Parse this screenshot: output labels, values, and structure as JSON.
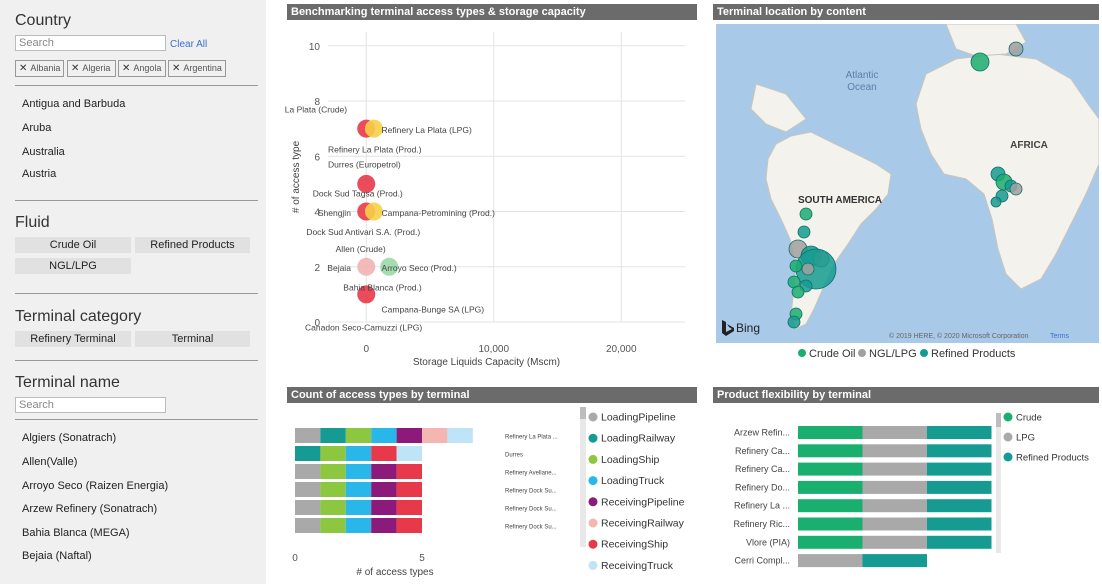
{
  "sidebar": {
    "country": {
      "title": "Country",
      "search_placeholder": "Search",
      "clear_all": "Clear All",
      "chips": [
        "Albania",
        "Algeria",
        "Angola",
        "Argentina"
      ],
      "items": [
        "Antigua and Barbuda",
        "Aruba",
        "Australia",
        "Austria"
      ]
    },
    "fluid": {
      "title": "Fluid",
      "buttons": [
        "Crude Oil",
        "Refined Products",
        "NGL/LPG"
      ]
    },
    "terminal_category": {
      "title": "Terminal category",
      "buttons": [
        "Refinery Terminal",
        "Terminal"
      ]
    },
    "terminal_name": {
      "title": "Terminal name",
      "search_placeholder": "Search",
      "items": [
        "Algiers (Sonatrach)",
        "Allen(Valle)",
        "Arroyo Seco (Raizen Energia)",
        "Arzew Refinery (Sonatrach)",
        "Bahia Blanca (MEGA)",
        "Bejaia (Naftal)"
      ]
    }
  },
  "scatter": {
    "title": "Benchmarking terminal access types & storage capacity",
    "xlabel": "Storage Liquids Capacity (Mscm)",
    "ylabel": "# of access type",
    "xticks": [
      "0",
      "10,000",
      "20,000"
    ],
    "yticks": [
      "0",
      "2",
      "4",
      "6",
      "8",
      "10"
    ],
    "xlim": [
      -3000,
      25000
    ],
    "ylim": [
      0,
      10.5
    ],
    "colors": {
      "red": "#e8394a",
      "yellow": "#f7d046",
      "green": "#9bd9a7",
      "pink": "#f2b3b3"
    },
    "points": [
      {
        "x": 0,
        "y": 7,
        "color": "red"
      },
      {
        "x": 600,
        "y": 7,
        "color": "yellow"
      },
      {
        "x": 0,
        "y": 5,
        "color": "red"
      },
      {
        "x": 0,
        "y": 4,
        "color": "red"
      },
      {
        "x": 600,
        "y": 4,
        "color": "yellow"
      },
      {
        "x": 0,
        "y": 2,
        "color": "pink"
      },
      {
        "x": 1800,
        "y": 2,
        "color": "green"
      },
      {
        "x": 0,
        "y": 1,
        "color": "red"
      }
    ],
    "labels": [
      {
        "text": "Refinery La Plata (Crude)",
        "x": -1500,
        "y": 7.7,
        "anchor": "end"
      },
      {
        "text": "Refinery La Plata (LPG)",
        "x": 1200,
        "y": 6.95,
        "anchor": "start"
      },
      {
        "text": "Refinery La Plata (Prod.)",
        "x": -3000,
        "y": 6.25,
        "anchor": "start"
      },
      {
        "text": "Durres (Europetrol)",
        "x": -3000,
        "y": 5.7,
        "anchor": "start"
      },
      {
        "text": "Dock Sud Tagsa (Prod.)",
        "x": -4200,
        "y": 4.65,
        "anchor": "start"
      },
      {
        "text": "Shengjin",
        "x": -1200,
        "y": 3.95,
        "anchor": "end"
      },
      {
        "text": "Campana-Petromining (Prod.)",
        "x": 1200,
        "y": 3.95,
        "anchor": "start"
      },
      {
        "text": "Dock Sud Antivari S.A. (Prod.)",
        "x": -4700,
        "y": 3.25,
        "anchor": "start"
      },
      {
        "text": "Allen (Crude)",
        "x": -2400,
        "y": 2.65,
        "anchor": "start"
      },
      {
        "text": "Bejaia",
        "x": -1200,
        "y": 1.95,
        "anchor": "end"
      },
      {
        "text": "Arroyo Seco (Prod.)",
        "x": 1200,
        "y": 1.95,
        "anchor": "start"
      },
      {
        "text": "Bahia Blanca (Prod.)",
        "x": -1800,
        "y": 1.25,
        "anchor": "start"
      },
      {
        "text": "Campana-Bunge SA (LPG)",
        "x": 1200,
        "y": 0.45,
        "anchor": "start"
      },
      {
        "text": "Canadon Seco-Camuzzi (LPG)",
        "x": -4800,
        "y": -0.2,
        "anchor": "start"
      }
    ]
  },
  "map": {
    "title": "Terminal location by content",
    "labels": [
      "Atlantic",
      "Ocean",
      "AFRICA",
      "SOUTH AMERICA"
    ],
    "bing": "Bing",
    "copyright": "© 2019 HERE, © 2020 Microsoft Corporation",
    "terms": "Terms",
    "legend": [
      "Crude Oil",
      "NGL/LPG",
      "Refined Products"
    ],
    "colors": {
      "crude": "#1aae6f",
      "ngl": "#a0a0a0",
      "refined": "#159b91",
      "water": "#a9c9e8",
      "land": "#f4f2ec"
    }
  },
  "access_chart": {
    "title": "Count of access types by terminal",
    "xlabel": "# of access types",
    "xticks": [
      "0",
      "5"
    ],
    "xlim": [
      0,
      7.2
    ],
    "terminals": [
      "Refinery La Plata ...",
      "Durres",
      "Refinery Avellane...",
      "Refinery Dock Su...",
      "Refinery Dock Su...",
      "Refinery Dock Su..."
    ],
    "legend": [
      {
        "name": "LoadingPipeline",
        "color": "#a9a9a9"
      },
      {
        "name": "LoadingRailway",
        "color": "#159b91"
      },
      {
        "name": "LoadingShip",
        "color": "#8dc63f"
      },
      {
        "name": "LoadingTruck",
        "color": "#29b6e8"
      },
      {
        "name": "ReceivingPipeline",
        "color": "#8b1a7a"
      },
      {
        "name": "ReceivingRailway",
        "color": "#f4b6b0"
      },
      {
        "name": "ReceivingShip",
        "color": "#e8394a"
      },
      {
        "name": "ReceivingTruck",
        "color": "#bfe3f7"
      }
    ],
    "rows": [
      [
        "LoadingPipeline",
        "LoadingRailway",
        "LoadingShip",
        "LoadingTruck",
        "ReceivingPipeline",
        "ReceivingRailway",
        "ReceivingTruck"
      ],
      [
        "LoadingRailway",
        "LoadingShip",
        "LoadingTruck",
        "ReceivingShip",
        "ReceivingTruck"
      ],
      [
        "LoadingPipeline",
        "LoadingShip",
        "LoadingTruck",
        "ReceivingPipeline",
        "ReceivingShip"
      ],
      [
        "LoadingPipeline",
        "LoadingShip",
        "LoadingTruck",
        "ReceivingPipeline",
        "ReceivingShip"
      ],
      [
        "LoadingPipeline",
        "LoadingShip",
        "LoadingTruck",
        "ReceivingPipeline",
        "ReceivingShip"
      ],
      [
        "LoadingPipeline",
        "LoadingShip",
        "LoadingTruck",
        "ReceivingPipeline",
        "ReceivingShip"
      ]
    ]
  },
  "flex_chart": {
    "title": "Product flexibility by terminal",
    "terminals": [
      "Arzew Refin...",
      "Refinery Ca...",
      "Refinery Ca...",
      "Refinery Do...",
      "Refinery La ...",
      "Refinery Ric...",
      "Vlore (PIA)",
      "Cerri Compl..."
    ],
    "legend": [
      {
        "name": "Crude",
        "color": "#1aae6f"
      },
      {
        "name": "LPG",
        "color": "#a9a9a9"
      },
      {
        "name": "Refined Products",
        "color": "#159b91"
      }
    ],
    "rows": [
      [
        "Crude",
        "LPG",
        "Refined Products"
      ],
      [
        "Crude",
        "LPG",
        "Refined Products"
      ],
      [
        "Crude",
        "LPG",
        "Refined Products"
      ],
      [
        "Crude",
        "LPG",
        "Refined Products"
      ],
      [
        "Crude",
        "LPG",
        "Refined Products"
      ],
      [
        "Crude",
        "LPG",
        "Refined Products"
      ],
      [
        "Crude",
        "LPG",
        "Refined Products"
      ],
      [
        "LPG",
        "Refined Products"
      ]
    ]
  },
  "chart_data": [
    {
      "type": "scatter",
      "title": "Benchmarking terminal access types & storage capacity",
      "xlabel": "Storage Liquids Capacity (Mscm)",
      "ylabel": "# of access type",
      "xlim": [
        -3000,
        25000
      ],
      "ylim": [
        0,
        10.5
      ],
      "grid": true
    },
    {
      "type": "bar",
      "title": "Count of access types by terminal",
      "xlabel": "# of access types",
      "stacked": true,
      "orientation": "horizontal",
      "legend": "right"
    },
    {
      "type": "bar",
      "title": "Product flexibility by terminal",
      "stacked": true,
      "orientation": "horizontal",
      "legend": "right"
    }
  ]
}
